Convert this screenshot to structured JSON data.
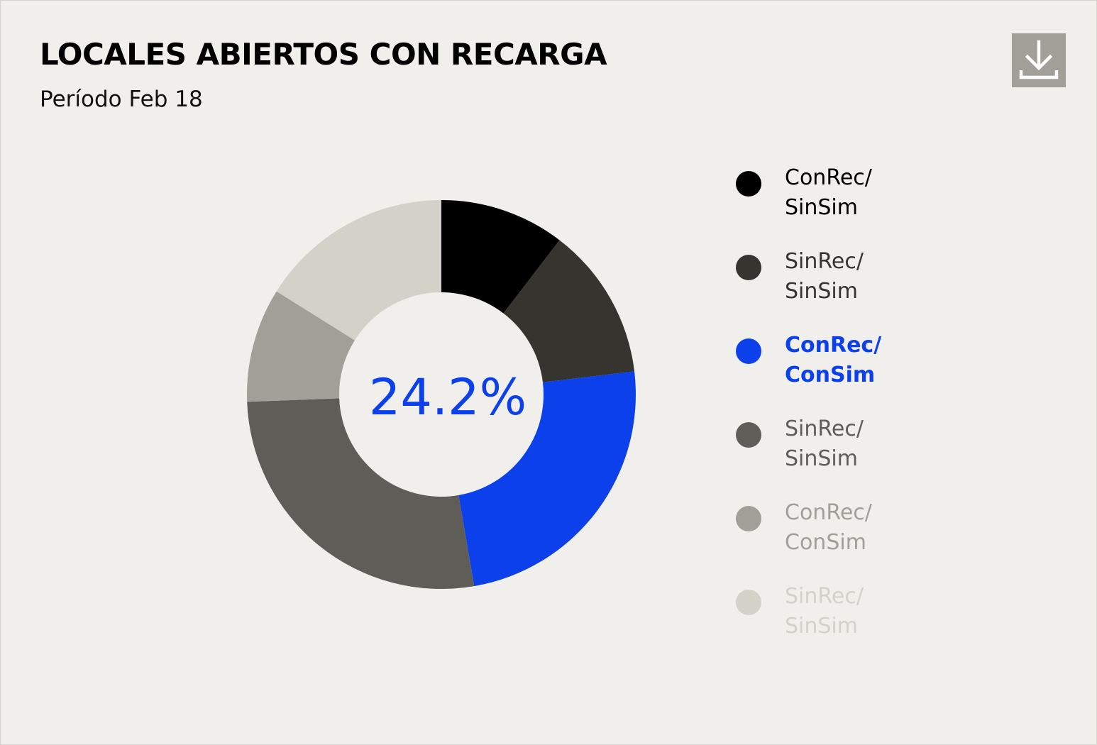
{
  "chart_data": {
    "type": "donut",
    "title": "LOCALES ABIERTOS CON RECARGA",
    "subtitle": "Período Feb 18",
    "center_label": "24.2%",
    "highlighted_index": 2,
    "legend_position": "right",
    "slices": [
      {
        "line1": "ConRec/",
        "line2": "SinSim",
        "value": 10.4,
        "color": "#000000",
        "text_color": "#000000"
      },
      {
        "line1": "SinRec/",
        "line2": "SinSim",
        "value": 12.7,
        "color": "#36342f",
        "text_color": "#36342f"
      },
      {
        "line1": "ConRec/",
        "line2": "ConSim",
        "value": 24.2,
        "color": "#0b40ea",
        "text_color": "#0b40ea"
      },
      {
        "line1": "SinRec/",
        "line2": "SinSim",
        "value": 27.1,
        "color": "#5e5d58",
        "text_color": "#5e5d58"
      },
      {
        "line1": "ConRec/",
        "line2": "ConSim",
        "value": 9.5,
        "color": "#a29f98",
        "text_color": "#a29f98"
      },
      {
        "line1": "SinRec/",
        "line2": "SinSim",
        "value": 16.1,
        "color": "#d4d1c8",
        "text_color": "#d4d1c8"
      }
    ],
    "colors": {
      "background": "#f0efeb",
      "accent": "#0b40ea"
    }
  },
  "download": {
    "icon": "download-icon"
  }
}
